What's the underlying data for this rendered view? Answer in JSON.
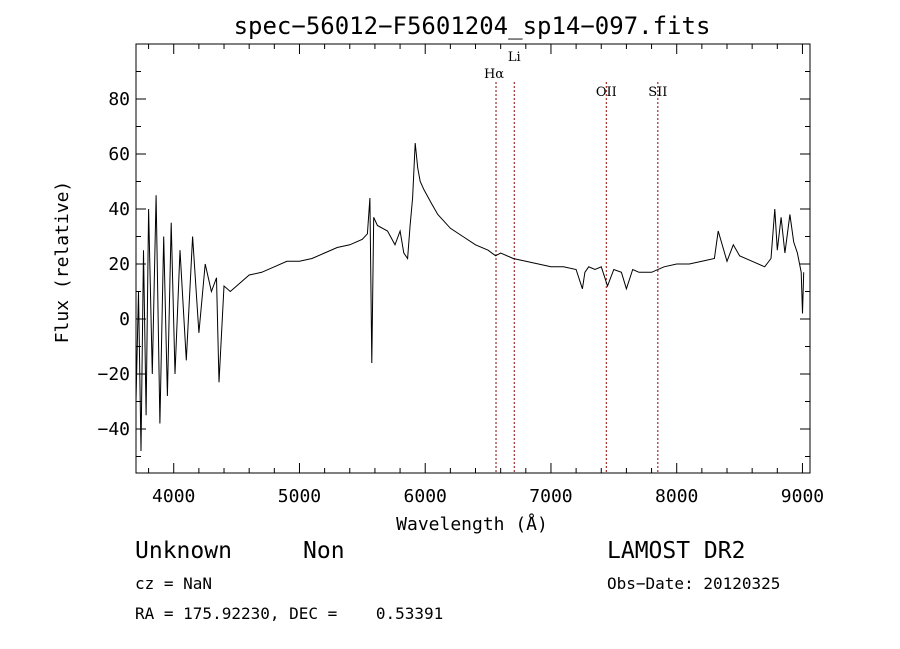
{
  "chart_data": {
    "type": "line",
    "title": "spec−56012−F5601204_sp14−097.fits",
    "xlabel": "Wavelength (Å)",
    "ylabel": "Flux (relative)",
    "xlim": [
      3700,
      9060
    ],
    "ylim": [
      -56,
      100
    ],
    "x_ticks": [
      4000,
      5000,
      6000,
      7000,
      8000,
      9000
    ],
    "y_ticks": [
      -40,
      -20,
      0,
      20,
      40,
      60,
      80
    ],
    "y_tick_labels": [
      "−40",
      "−20",
      "0",
      "20",
      "40",
      "60",
      "80"
    ],
    "grid": false,
    "series": [
      {
        "x": [
          3700,
          3720,
          3740,
          3760,
          3780,
          3800,
          3830,
          3860,
          3890,
          3920,
          3950,
          3980,
          4010,
          4050,
          4100,
          4150,
          4200,
          4250,
          4300,
          4340,
          4360,
          4400,
          4450,
          4500,
          4600,
          4700,
          4800,
          4900,
          5000,
          5100,
          5200,
          5300,
          5400,
          5500,
          5540,
          5560,
          5575,
          5590,
          5620,
          5700,
          5760,
          5800,
          5830,
          5860,
          5880,
          5900,
          5920,
          5940,
          5960,
          5990,
          6050,
          6100,
          6200,
          6300,
          6400,
          6500,
          6560,
          6600,
          6700,
          6800,
          6900,
          7000,
          7100,
          7200,
          7250,
          7270,
          7300,
          7350,
          7400,
          7450,
          7500,
          7560,
          7600,
          7650,
          7700,
          7800,
          7900,
          8000,
          8100,
          8200,
          8300,
          8330,
          8400,
          8450,
          8500,
          8600,
          8700,
          8750,
          8780,
          8800,
          8830,
          8860,
          8900,
          8930,
          8960,
          8990,
          9000,
          9010
        ],
        "y": [
          -30,
          10,
          -48,
          25,
          -35,
          40,
          -20,
          45,
          -38,
          30,
          -28,
          35,
          -20,
          25,
          -15,
          30,
          -5,
          20,
          10,
          15,
          -23,
          12,
          10,
          12,
          16,
          17,
          19,
          21,
          21,
          22,
          24,
          26,
          27,
          29,
          31,
          44,
          -16,
          37,
          34,
          32,
          27,
          32,
          24,
          22,
          34,
          44,
          64,
          55,
          50,
          47,
          42,
          38,
          33,
          30,
          27,
          25,
          23,
          24,
          22,
          21,
          20,
          19,
          19,
          18,
          11,
          17,
          19,
          18,
          19,
          12,
          18,
          17,
          11,
          18,
          17,
          17,
          19,
          20,
          20,
          21,
          22,
          32,
          21,
          27,
          23,
          21,
          19,
          22,
          40,
          25,
          37,
          24,
          38,
          28,
          24,
          17,
          2,
          17
        ]
      }
    ],
    "annotations": [
      {
        "label": "Hα",
        "x": 6563
      },
      {
        "label": "Li",
        "x": 6708
      },
      {
        "label": "OII",
        "x": 7440
      },
      {
        "label": "SII",
        "x": 7850
      }
    ]
  },
  "info": {
    "class_label": "Unknown",
    "subclass_label": "Non",
    "survey": "LAMOST DR2",
    "cz": "cz = NaN",
    "obs_date": "Obs−Date: 20120325",
    "coords": "RA = 175.92230, DEC =    0.53391"
  },
  "colors": {
    "spectrum": "#000000",
    "marker_line": "#8b0000",
    "axes": "#000000"
  }
}
